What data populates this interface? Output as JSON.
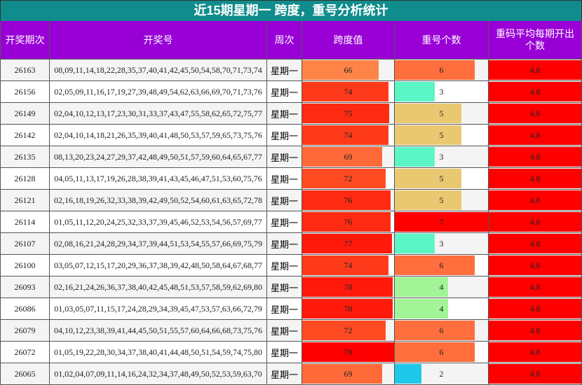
{
  "header": {
    "title": "近15期星期一 跨度，重号分析统计"
  },
  "table": {
    "columns": [
      "开奖期次",
      "开奖号",
      "周次",
      "跨度值",
      "重号个数",
      "重码平均每期开出个数"
    ],
    "rows": [
      [
        26163,
        "08,09,11,14,18,22,28,35,37,40,41,42,45,50,54,58,70,71,73,74",
        "星期一",
        66,
        6,
        4.8
      ],
      [
        26156,
        "02,05,09,11,16,17,19,27,39,48,49,54,62,63,66,69,70,71,73,76",
        "星期一",
        74,
        3,
        4.8
      ],
      [
        26149,
        "02,04,10,12,13,17,23,30,31,33,37,43,47,55,58,62,65,72,75,77",
        "星期一",
        75,
        5,
        4.8
      ],
      [
        26142,
        "02,04,10,14,18,21,26,35,39,40,41,48,50,53,57,59,65,73,75,76",
        "星期一",
        74,
        5,
        4.8
      ],
      [
        26135,
        "08,13,20,23,24,27,29,37,42,48,49,50,51,57,59,60,64,65,67,77",
        "星期一",
        69,
        3,
        4.8
      ],
      [
        26128,
        "04,05,11,13,17,19,26,28,38,39,41,43,45,46,47,51,53,60,75,76",
        "星期一",
        72,
        5,
        4.8
      ],
      [
        26121,
        "02,16,18,19,26,32,33,38,39,42,49,50,52,54,60,61,63,65,72,78",
        "星期一",
        76,
        5,
        4.8
      ],
      [
        26114,
        "01,05,11,12,20,24,25,32,33,37,39,45,46,52,53,54,56,57,69,77",
        "星期一",
        76,
        7,
        4.8
      ],
      [
        26107,
        "02,08,16,21,24,28,29,34,37,39,44,51,53,54,55,57,66,69,75,79",
        "星期一",
        77,
        3,
        4.8
      ],
      [
        26100,
        "03,05,07,12,15,17,20,29,36,37,38,39,42,48,50,58,64,67,68,77",
        "星期一",
        74,
        6,
        4.8
      ],
      [
        26093,
        "02,16,21,24,26,36,37,38,40,42,45,48,51,53,57,58,59,62,69,80",
        "星期一",
        78,
        4,
        4.8
      ],
      [
        26086,
        "01,03,05,07,11,15,17,24,28,29,34,39,45,47,53,57,63,66,72,79",
        "星期一",
        78,
        4,
        4.8
      ],
      [
        26079,
        "04,10,12,23,38,39,41,44,45,50,51,55,57,60,64,66,68,73,75,76",
        "星期一",
        72,
        6,
        4.8
      ],
      [
        26072,
        "01,05,19,22,28,30,34,37,38,40,41,44,48,50,51,54,59,74,75,80",
        "星期一",
        79,
        6,
        4.8
      ],
      [
        26065,
        "01,02,04,07,09,11,14,16,24,32,34,37,48,49,50,52,53,59,63,70",
        "星期一",
        69,
        2,
        4.8
      ]
    ]
  }
}
